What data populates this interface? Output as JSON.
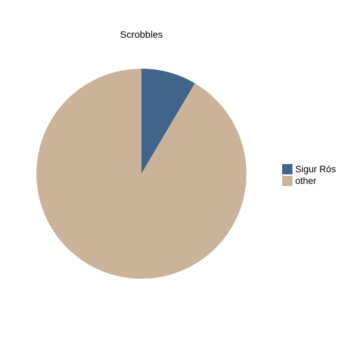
{
  "chart_data": {
    "type": "pie",
    "title": "Scrobbles",
    "slices": [
      {
        "label": "Sigur Rós",
        "value": 8.5,
        "color": "#41658a"
      },
      {
        "label": "other",
        "value": 91.5,
        "color": "#cbb399"
      }
    ],
    "start_angle_deg": 0,
    "direction": "clockwise",
    "legend_placement": "right"
  }
}
